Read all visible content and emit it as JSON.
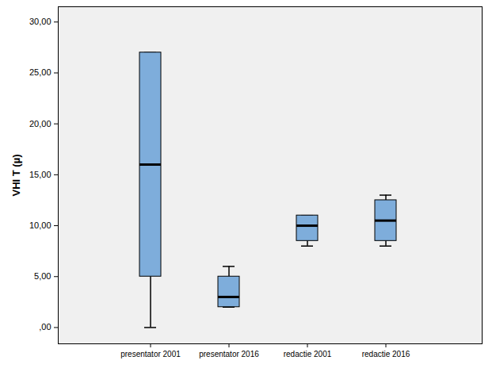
{
  "chart_data": {
    "type": "box",
    "y_label": "VHI T (µ)",
    "categories": [
      "presentator 2001",
      "presentator 2016",
      "redactie 2001",
      "redactie 2016"
    ],
    "min": [
      0,
      2,
      8,
      8
    ],
    "q1": [
      5,
      2,
      8.5,
      8.5
    ],
    "median": [
      16,
      3,
      10,
      10.5
    ],
    "q3": [
      27,
      5,
      11,
      12.5
    ],
    "max": [
      27,
      6,
      11,
      13
    ],
    "color": "#7eaddb",
    "ylim": [
      -1.6,
      31.5
    ],
    "yticks": [
      {
        "value": 0,
        "label": ",00"
      },
      {
        "value": 5,
        "label": "5,00"
      },
      {
        "value": 10,
        "label": "10,00"
      },
      {
        "value": 15,
        "label": "15,00"
      },
      {
        "value": 20,
        "label": "20,00"
      },
      {
        "value": 25,
        "label": "25,00"
      },
      {
        "value": 30,
        "label": "30,00"
      }
    ],
    "grid": false
  }
}
